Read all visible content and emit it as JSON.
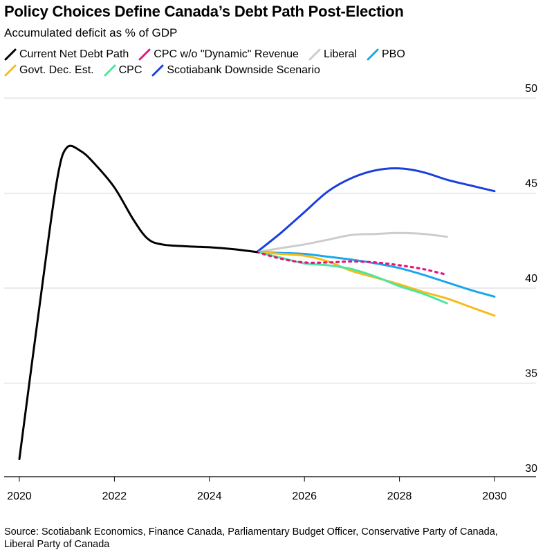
{
  "header": {
    "title": "Policy Choices Define Canada’s Debt Path Post-Election",
    "subtitle": "Accumulated deficit as % of GDP"
  },
  "source": "Source: Scotiabank Economics, Finance Canada, Parliamentary Budget Officer, Conservative Party of Canada, Liberal Party of Canada",
  "chart_data": {
    "type": "line",
    "title": "Policy Choices Define Canada’s Debt Path Post-Election",
    "subtitle": "Accumulated deficit as % of GDP",
    "xlabel": "",
    "ylabel": "",
    "xlim": [
      2020,
      2030
    ],
    "ylim": [
      30,
      50
    ],
    "x_ticks": [
      "2020",
      "2022",
      "2024",
      "2026",
      "2028",
      "2030"
    ],
    "y_ticks": [
      "30",
      "35",
      "40",
      "45",
      "50"
    ],
    "grid": "horizontal",
    "legend_placement": "top-left",
    "series": [
      {
        "name": "Current Net Debt Path",
        "color": "#000000",
        "dash": "solid",
        "x": [
          2020,
          2020.5,
          2020.8,
          2021,
          2021.3,
          2021.6,
          2022,
          2022.4,
          2022.7,
          2023,
          2023.5,
          2024,
          2024.5,
          2025
        ],
        "y": [
          31.0,
          40.5,
          45.8,
          47.4,
          47.2,
          46.5,
          45.3,
          43.6,
          42.6,
          42.3,
          42.2,
          42.15,
          42.05,
          41.9
        ]
      },
      {
        "name": "Scotiabank Downside Scenario",
        "color": "#1a3fdc",
        "dash": "solid",
        "x": [
          2025,
          2025.5,
          2026,
          2026.5,
          2027,
          2027.5,
          2028,
          2028.5,
          2029,
          2029.5,
          2030
        ],
        "y": [
          41.9,
          42.9,
          44.0,
          45.1,
          45.8,
          46.2,
          46.3,
          46.1,
          45.7,
          45.4,
          45.1
        ]
      },
      {
        "name": "Liberal",
        "color": "#cccccc",
        "dash": "solid",
        "x": [
          2025,
          2025.5,
          2026,
          2026.5,
          2027,
          2027.5,
          2028,
          2028.5,
          2029
        ],
        "y": [
          41.9,
          42.1,
          42.3,
          42.55,
          42.8,
          42.85,
          42.9,
          42.85,
          42.7
        ]
      },
      {
        "name": "PBO",
        "color": "#1aa7e8",
        "dash": "solid",
        "x": [
          2025,
          2025.5,
          2026,
          2026.5,
          2027,
          2027.5,
          2028,
          2028.5,
          2029,
          2029.5,
          2030
        ],
        "y": [
          41.9,
          41.85,
          41.8,
          41.65,
          41.5,
          41.3,
          41.05,
          40.7,
          40.3,
          39.9,
          39.55
        ]
      },
      {
        "name": "Govt. Dec. Est.",
        "color": "#f7bb1a",
        "dash": "solid",
        "x": [
          2025,
          2025.5,
          2026,
          2026.5,
          2027,
          2027.5,
          2028,
          2028.5,
          2029,
          2029.5,
          2030
        ],
        "y": [
          41.9,
          41.8,
          41.7,
          41.4,
          40.9,
          40.55,
          40.2,
          39.8,
          39.45,
          39.0,
          38.55
        ]
      },
      {
        "name": "CPC",
        "color": "#4de6a0",
        "dash": "solid",
        "x": [
          2025,
          2025.5,
          2026,
          2026.5,
          2027,
          2027.5,
          2028,
          2028.5,
          2029
        ],
        "y": [
          41.9,
          41.6,
          41.3,
          41.2,
          41.0,
          40.6,
          40.1,
          39.7,
          39.2
        ]
      },
      {
        "name": "CPC w/o \"Dynamic\" Revenue",
        "color": "#e8157f",
        "dash": "dotted",
        "x": [
          2025,
          2025.5,
          2026,
          2026.5,
          2027,
          2027.5,
          2028,
          2028.5,
          2029
        ],
        "y": [
          41.9,
          41.55,
          41.35,
          41.35,
          41.4,
          41.35,
          41.2,
          41.0,
          40.7
        ]
      }
    ]
  }
}
